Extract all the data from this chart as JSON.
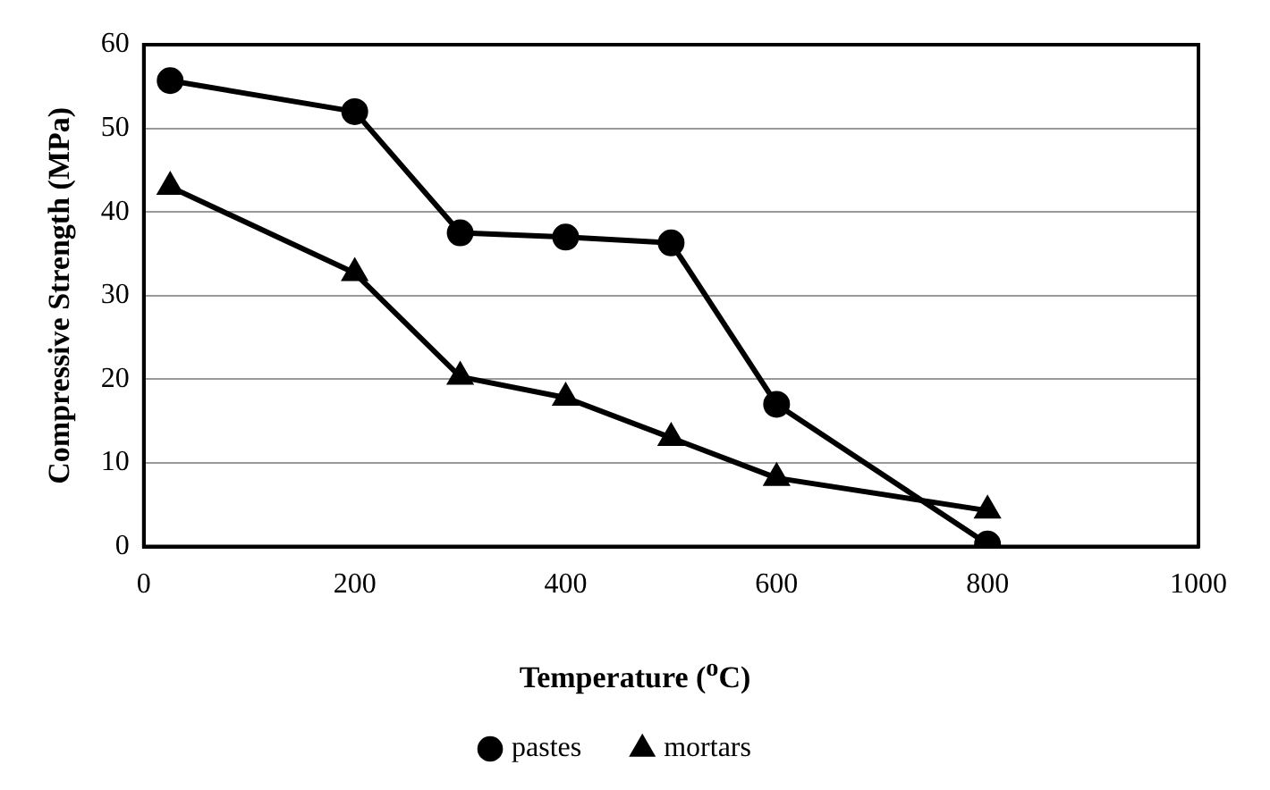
{
  "chart_data": {
    "type": "line",
    "xlabel": "Temperature ($^{o}$C)",
    "ylabel": "Compressive Strength (MPa)",
    "x": [
      25,
      200,
      300,
      400,
      500,
      600,
      800
    ],
    "series": [
      {
        "name": "pastes",
        "color": "#000000",
        "marker": "circle",
        "values": [
          55.7,
          52,
          37.5,
          37,
          36.3,
          17,
          0.3
        ]
      },
      {
        "name": "mortars",
        "color": "#000000",
        "marker": "triangle",
        "values": [
          43,
          32.7,
          20.3,
          17.8,
          13,
          8.2,
          4.3
        ]
      }
    ],
    "xlim": [
      0,
      1000
    ],
    "xticks": [
      0,
      200,
      400,
      600,
      800,
      1000
    ],
    "ylim": [
      0,
      60
    ],
    "yticks": [
      0,
      10,
      20,
      30,
      40,
      50,
      60
    ],
    "grid": "y",
    "legend": "bottom",
    "line_style": "solid"
  }
}
